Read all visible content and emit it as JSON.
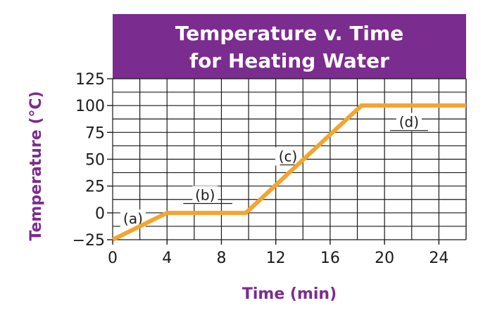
{
  "chart_data": {
    "type": "line",
    "title": "Temperature v. Time for Heating Water",
    "title_lines": [
      "Temperature v. Time",
      "for Heating Water"
    ],
    "xlabel": "Time (min)",
    "ylabel": "Temperature (°C)",
    "xlim": [
      0,
      26
    ],
    "ylim": [
      -25,
      125
    ],
    "x_ticks": [
      0,
      4,
      8,
      12,
      16,
      20,
      24
    ],
    "y_ticks": [
      -25,
      0,
      25,
      50,
      75,
      100,
      125
    ],
    "x_tick_labels": [
      "0",
      "4",
      "8",
      "12",
      "16",
      "20",
      "24"
    ],
    "y_tick_labels": [
      "−25",
      "0",
      "25",
      "50",
      "75",
      "100",
      "125"
    ],
    "grid": true,
    "series": [
      {
        "x": [
          0,
          4,
          9.8,
          18.3,
          26
        ],
        "y": [
          -25,
          0,
          0,
          100,
          100
        ]
      }
    ],
    "annotations": [
      {
        "text": "(a)",
        "x": 1.5,
        "y": -10,
        "line_to": [
          3.2,
          3.2
        ]
      },
      {
        "text": "(b)",
        "x": 6.8,
        "y": 12,
        "line_to": [
          5.2,
          8.8
        ]
      },
      {
        "text": "(c)",
        "x": 12.9,
        "y": 48,
        "line_to": [
          12.3,
          13.5
        ]
      },
      {
        "text": "(d)",
        "x": 21.8,
        "y": 80,
        "line_to": [
          20.4,
          23.2
        ]
      }
    ],
    "colors": {
      "title_bg": "#7B2C8F",
      "title_text": "#ffffff",
      "axis_label": "#7B2C8F",
      "line": "#F2A530",
      "grid": "#1a1a1a",
      "text": "#1a1a1a"
    }
  }
}
